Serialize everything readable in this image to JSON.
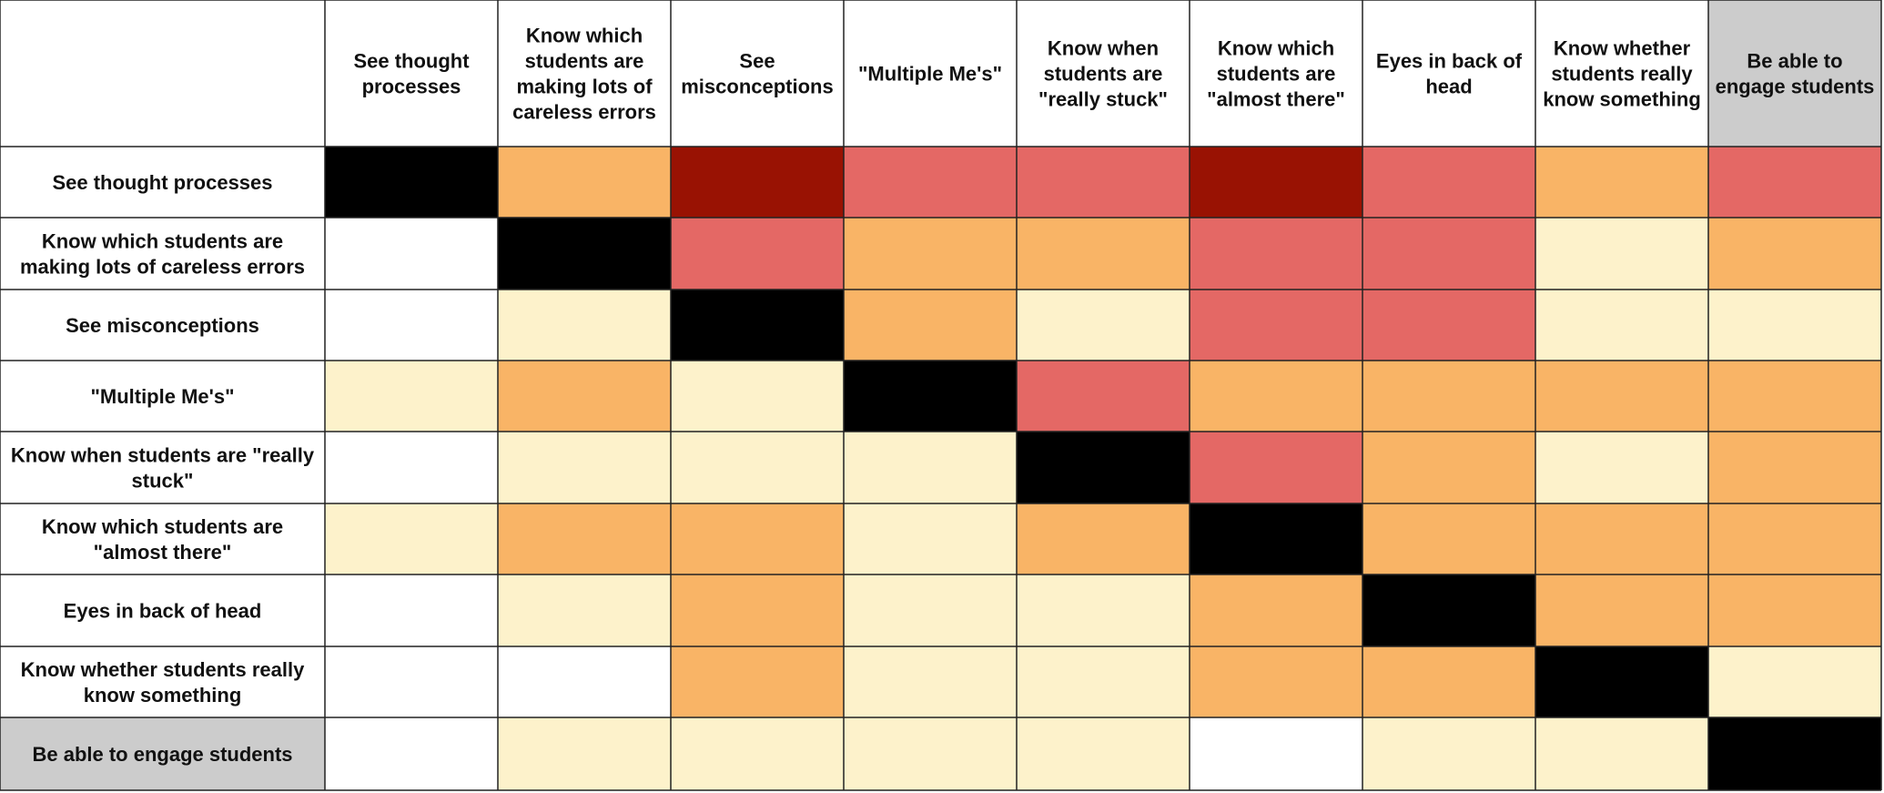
{
  "chart_data": {
    "type": "heatmap",
    "title": "",
    "row_labels": [
      [
        "See thought processes"
      ],
      [
        "Know which students are",
        "making lots of careless errors"
      ],
      [
        "See misconceptions"
      ],
      [
        "\"Multiple Me's\""
      ],
      [
        "Know when students are \"really",
        "stuck\""
      ],
      [
        "Know which students are",
        "\"almost there\""
      ],
      [
        "Eyes in back of head"
      ],
      [
        "Know whether students really",
        "know something"
      ],
      [
        "Be able to engage students"
      ]
    ],
    "column_labels": [
      [
        "See thought",
        "processes"
      ],
      [
        "Know which",
        "students are",
        "making lots of",
        "careless errors"
      ],
      [
        "See",
        "misconceptions"
      ],
      [
        "\"Multiple Me's\""
      ],
      [
        "Know when",
        "students are",
        "\"really stuck\""
      ],
      [
        "Know which",
        "students are",
        "\"almost there\""
      ],
      [
        "Eyes in back of",
        "head"
      ],
      [
        "Know whether",
        "students really",
        "know something"
      ],
      [
        "Be able to",
        "engage students"
      ]
    ],
    "highlighted_label_index": 8,
    "value_levels": {
      "0": "#ffffff",
      "1": "#fdf2cb",
      "2": "#f9b466",
      "3": "#e46865",
      "4": "#991203",
      "diagonal": "#000000",
      "label_highlight": "#cccccc"
    },
    "values": [
      [
        -1,
        2,
        4,
        3,
        3,
        4,
        3,
        2,
        3
      ],
      [
        0,
        -1,
        3,
        2,
        2,
        3,
        3,
        1,
        2
      ],
      [
        0,
        1,
        -1,
        2,
        1,
        3,
        3,
        1,
        1
      ],
      [
        1,
        2,
        1,
        -1,
        3,
        2,
        2,
        2,
        2
      ],
      [
        0,
        1,
        1,
        1,
        -1,
        3,
        2,
        1,
        2
      ],
      [
        1,
        2,
        2,
        1,
        2,
        -1,
        2,
        2,
        2
      ],
      [
        0,
        1,
        2,
        1,
        1,
        2,
        -1,
        2,
        2
      ],
      [
        0,
        0,
        2,
        1,
        1,
        2,
        2,
        -1,
        1
      ],
      [
        0,
        1,
        1,
        1,
        1,
        0,
        1,
        1,
        -1
      ]
    ]
  }
}
